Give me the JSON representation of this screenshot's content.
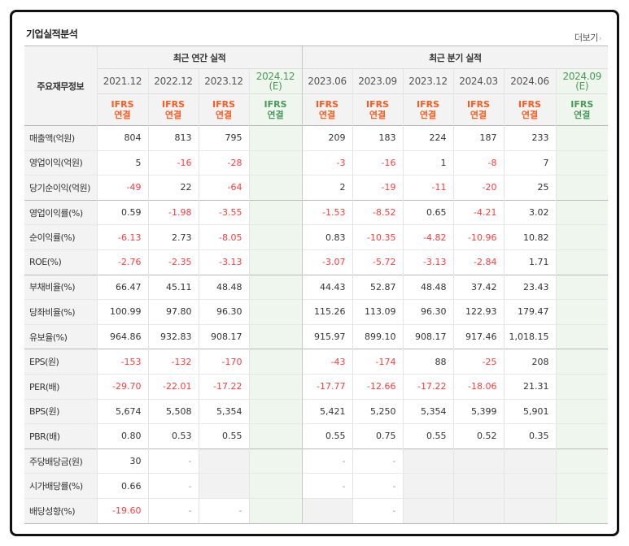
{
  "header": {
    "title": "기업실적분석",
    "more_label": "더보기",
    "more_chev": "›"
  },
  "table": {
    "corner_label": "주요재무정보",
    "group_annual": "최근 연간 실적",
    "group_quarter": "최근 분기 실적",
    "periods": [
      {
        "date": "2021.12",
        "est": ""
      },
      {
        "date": "2022.12",
        "est": ""
      },
      {
        "date": "2023.12",
        "est": ""
      },
      {
        "date": "2024.12",
        "est": "(E)"
      },
      {
        "date": "2023.06",
        "est": ""
      },
      {
        "date": "2023.09",
        "est": ""
      },
      {
        "date": "2023.12",
        "est": ""
      },
      {
        "date": "2024.03",
        "est": ""
      },
      {
        "date": "2024.06",
        "est": ""
      },
      {
        "date": "2024.09",
        "est": "(E)"
      }
    ],
    "basis": {
      "ifrs": "IFRS",
      "consol": "연결"
    },
    "rows": [
      {
        "label": "매출액(억원)",
        "values": [
          "804",
          "813",
          "795",
          "",
          "209",
          "183",
          "224",
          "187",
          "233",
          ""
        ]
      },
      {
        "label": "영업이익(억원)",
        "values": [
          "5",
          "-16",
          "-28",
          "",
          "-3",
          "-16",
          "1",
          "-8",
          "7",
          ""
        ]
      },
      {
        "label": "당기순이익(억원)",
        "values": [
          "-49",
          "22",
          "-64",
          "",
          "2",
          "-19",
          "-11",
          "-20",
          "25",
          ""
        ]
      },
      {
        "label": "영업이익률(%)",
        "values": [
          "0.59",
          "-1.98",
          "-3.55",
          "",
          "-1.53",
          "-8.52",
          "0.65",
          "-4.21",
          "3.02",
          ""
        ]
      },
      {
        "label": "순이익률(%)",
        "values": [
          "-6.13",
          "2.73",
          "-8.05",
          "",
          "0.83",
          "-10.35",
          "-4.82",
          "-10.96",
          "10.82",
          ""
        ]
      },
      {
        "label": "ROE(%)",
        "values": [
          "-2.76",
          "-2.35",
          "-3.13",
          "",
          "-3.07",
          "-5.72",
          "-3.13",
          "-2.84",
          "1.71",
          ""
        ]
      },
      {
        "label": "부채비율(%)",
        "values": [
          "66.47",
          "45.11",
          "48.48",
          "",
          "44.43",
          "52.87",
          "48.48",
          "37.42",
          "23.43",
          ""
        ]
      },
      {
        "label": "당좌비율(%)",
        "values": [
          "100.99",
          "97.80",
          "96.30",
          "",
          "115.26",
          "113.09",
          "96.30",
          "122.93",
          "179.47",
          ""
        ]
      },
      {
        "label": "유보율(%)",
        "values": [
          "964.86",
          "932.83",
          "908.17",
          "",
          "915.97",
          "899.10",
          "908.17",
          "917.46",
          "1,018.15",
          ""
        ]
      },
      {
        "label": "EPS(원)",
        "values": [
          "-153",
          "-132",
          "-170",
          "",
          "-43",
          "-174",
          "88",
          "-25",
          "208",
          ""
        ]
      },
      {
        "label": "PER(배)",
        "values": [
          "-29.70",
          "-22.01",
          "-17.22",
          "",
          "-17.77",
          "-12.66",
          "-17.22",
          "-18.06",
          "21.31",
          ""
        ]
      },
      {
        "label": "BPS(원)",
        "values": [
          "5,674",
          "5,508",
          "5,354",
          "",
          "5,421",
          "5,250",
          "5,354",
          "5,399",
          "5,901",
          ""
        ]
      },
      {
        "label": "PBR(배)",
        "values": [
          "0.80",
          "0.53",
          "0.55",
          "",
          "0.55",
          "0.75",
          "0.55",
          "0.52",
          "0.35",
          ""
        ]
      },
      {
        "label": "주당배당금(원)",
        "values": [
          "30",
          "-",
          "",
          "",
          "-",
          "-",
          "",
          "",
          "",
          ""
        ]
      },
      {
        "label": "시가배당률(%)",
        "values": [
          "0.66",
          "-",
          "",
          "",
          "-",
          "-",
          "",
          "",
          "",
          ""
        ]
      },
      {
        "label": "배당성향(%)",
        "values": [
          "-19.60",
          "-",
          "-",
          "",
          "",
          "-",
          "",
          "",
          "",
          ""
        ]
      }
    ]
  }
}
